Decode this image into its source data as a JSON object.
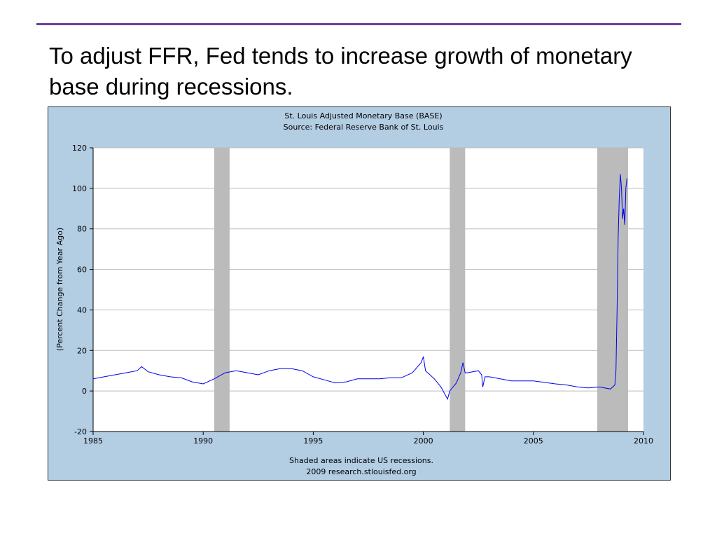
{
  "slide": {
    "title": "To adjust FFR, Fed tends to increase growth of monetary base during recessions."
  },
  "colors": {
    "accent_rule": "#6b3fa0",
    "chart_background": "#b3cde3",
    "plot_background": "#ffffff",
    "series_line": "#0000ee",
    "recession_shade": "#bbbbbb",
    "grid": "#bbbbbb"
  },
  "chart_data": {
    "type": "line",
    "title": "St. Louis Adjusted Monetary Base (BASE)",
    "subtitle": "Source: Federal Reserve Bank of St. Louis",
    "xlabel": "",
    "ylabel": "(Percent Change from Year Ago)",
    "xlim": [
      1985,
      2010
    ],
    "ylim": [
      -20,
      120
    ],
    "xticks": [
      "1985",
      "1990",
      "1995",
      "2000",
      "2005",
      "2010"
    ],
    "yticks": [
      "-20",
      "0",
      "20",
      "40",
      "60",
      "80",
      "100",
      "120"
    ],
    "grid": "horizontal",
    "recessions": [
      [
        1990.5,
        1991.2
      ],
      [
        2001.2,
        2001.9
      ],
      [
        2007.9,
        2009.3
      ]
    ],
    "footnote": "Shaded areas indicate US recessions.",
    "credit": "2009 research.stlouisfed.org",
    "series": [
      {
        "points": [
          [
            1985.0,
            6
          ],
          [
            1985.5,
            7
          ],
          [
            1986.0,
            8
          ],
          [
            1986.5,
            9
          ],
          [
            1987.0,
            10
          ],
          [
            1987.2,
            12
          ],
          [
            1987.5,
            9.5
          ],
          [
            1988.0,
            8
          ],
          [
            1988.5,
            7
          ],
          [
            1989.0,
            6.5
          ],
          [
            1989.5,
            4.5
          ],
          [
            1990.0,
            3.5
          ],
          [
            1990.5,
            6
          ],
          [
            1991.0,
            9
          ],
          [
            1991.5,
            10
          ],
          [
            1992.0,
            9
          ],
          [
            1992.5,
            8
          ],
          [
            1993.0,
            10
          ],
          [
            1993.5,
            11
          ],
          [
            1994.0,
            11
          ],
          [
            1994.5,
            10
          ],
          [
            1995.0,
            7
          ],
          [
            1995.5,
            5.5
          ],
          [
            1996.0,
            4
          ],
          [
            1996.5,
            4.5
          ],
          [
            1997.0,
            6
          ],
          [
            1997.5,
            6
          ],
          [
            1998.0,
            6
          ],
          [
            1998.5,
            6.5
          ],
          [
            1999.0,
            6.5
          ],
          [
            1999.5,
            9
          ],
          [
            1999.9,
            14
          ],
          [
            2000.0,
            17
          ],
          [
            2000.1,
            10
          ],
          [
            2000.5,
            6
          ],
          [
            2000.8,
            2
          ],
          [
            2001.0,
            -2
          ],
          [
            2001.1,
            -4
          ],
          [
            2001.2,
            0
          ],
          [
            2001.5,
            4
          ],
          [
            2001.7,
            9
          ],
          [
            2001.8,
            14
          ],
          [
            2001.9,
            9
          ],
          [
            2002.0,
            9
          ],
          [
            2002.5,
            10
          ],
          [
            2002.65,
            8
          ],
          [
            2002.7,
            2
          ],
          [
            2002.8,
            7
          ],
          [
            2003.0,
            7
          ],
          [
            2004.0,
            5
          ],
          [
            2005.0,
            5
          ],
          [
            2006.0,
            3.5
          ],
          [
            2006.5,
            3
          ],
          [
            2007.0,
            2
          ],
          [
            2007.5,
            1.5
          ],
          [
            2008.0,
            2
          ],
          [
            2008.5,
            1
          ],
          [
            2008.7,
            3
          ],
          [
            2008.75,
            10
          ],
          [
            2008.8,
            40
          ],
          [
            2008.85,
            75
          ],
          [
            2008.9,
            95
          ],
          [
            2008.95,
            107
          ],
          [
            2009.0,
            100
          ],
          [
            2009.05,
            85
          ],
          [
            2009.1,
            90
          ],
          [
            2009.15,
            82
          ],
          [
            2009.2,
            100
          ],
          [
            2009.25,
            105
          ]
        ]
      }
    ]
  }
}
